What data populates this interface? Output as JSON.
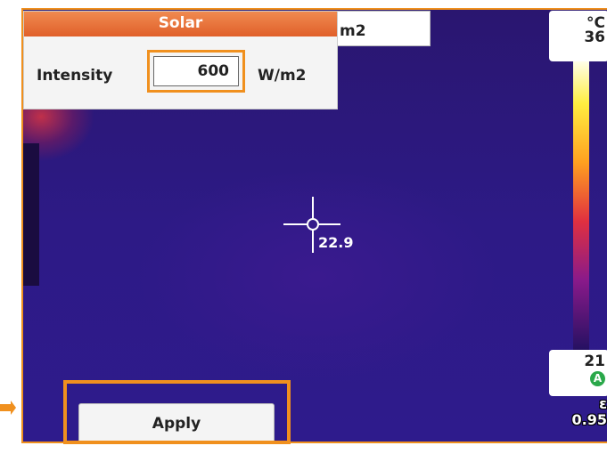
{
  "dialog": {
    "title": "Solar",
    "label": "Intensity",
    "value": "600",
    "unit": "W/m2"
  },
  "background_tab": {
    "text": "m2"
  },
  "scale": {
    "unit": "°C",
    "max": "36",
    "min": "21",
    "mode": "A"
  },
  "spot": {
    "temperature": "22.9"
  },
  "emissivity": {
    "symbol": "ε",
    "value": "0.95"
  },
  "button": {
    "label": "Apply"
  }
}
